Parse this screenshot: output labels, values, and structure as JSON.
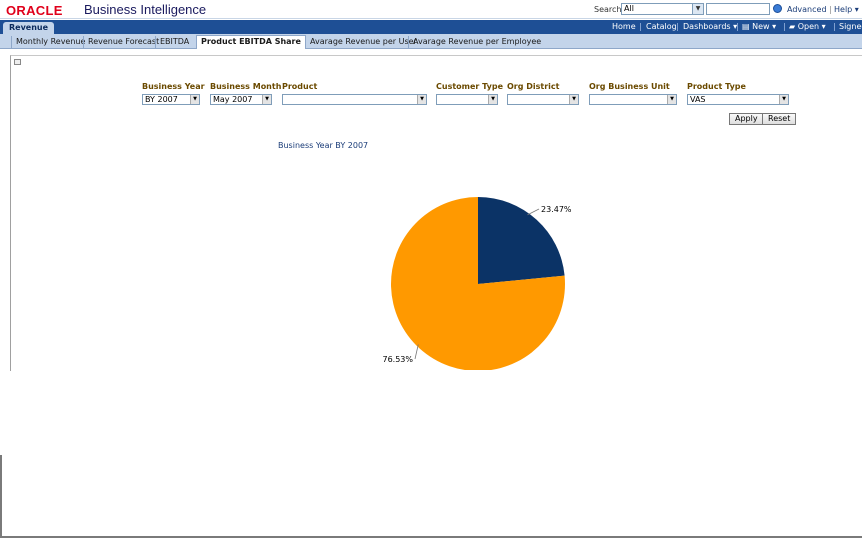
{
  "header": {
    "brand": "ORACLE",
    "product": "Business Intelligence",
    "search_label": "Search",
    "search_scope": "All",
    "links": {
      "advanced": "Advanced",
      "help": "Help"
    }
  },
  "nav": {
    "dashboard": "Revenue",
    "links": {
      "home": "Home",
      "catalog": "Catalog",
      "dashboards": "Dashboards",
      "new": "New",
      "open": "Open",
      "signed_in": "Signed"
    }
  },
  "tabs": [
    {
      "label": "Monthly Revenue"
    },
    {
      "label": "Revenue Forecast"
    },
    {
      "label": "EBITDA"
    },
    {
      "label": "Product EBITDA Share"
    },
    {
      "label": "Avarage Revenue per User"
    },
    {
      "label": "Avarage Revenue per Employee"
    }
  ],
  "active_tab": "Product EBITDA Share",
  "prompts": [
    {
      "label": "Business Year",
      "value": "BY 2007"
    },
    {
      "label": "Business Month",
      "value": "May 2007"
    },
    {
      "label": "Product",
      "value": ""
    },
    {
      "label": "Customer Type",
      "value": ""
    },
    {
      "label": "Org District",
      "value": ""
    },
    {
      "label": "Org Business Unit",
      "value": ""
    },
    {
      "label": "Product Type",
      "value": "VAS"
    }
  ],
  "buttons": {
    "apply": "Apply",
    "reset": "Reset"
  },
  "chart_caption": "Business Year  BY 2007",
  "chart_data": {
    "type": "pie",
    "title": "Business Year  BY 2007",
    "values": [
      23.47,
      76.53
    ],
    "labels": [
      "23.47%",
      "76.53%"
    ],
    "colors": [
      "#0b3366",
      "#ff9900"
    ]
  }
}
